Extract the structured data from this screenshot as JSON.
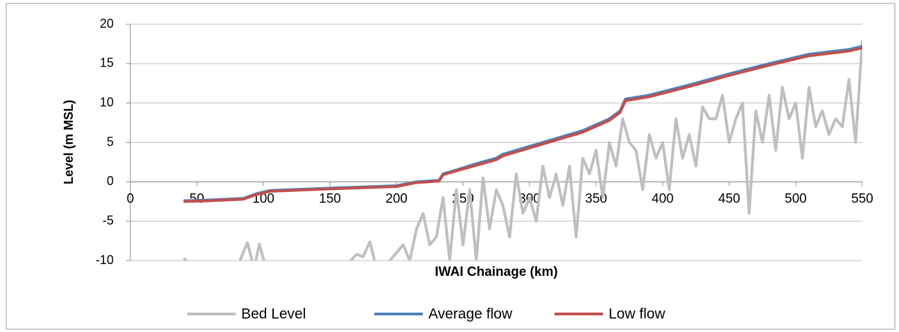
{
  "chart_data": {
    "type": "line",
    "x_label": "IWAI Chainage (km)",
    "y_label": "Level (m MSL)",
    "xlim": [
      0,
      550
    ],
    "xticks": [
      0,
      50,
      100,
      150,
      200,
      250,
      300,
      350,
      400,
      450,
      500,
      550
    ],
    "ylim": [
      -10,
      20
    ],
    "yticks": [
      -10,
      -5,
      0,
      5,
      10,
      15,
      20
    ],
    "grid": true,
    "legend": "bottom",
    "series": [
      {
        "name": "Bed Level",
        "color": "#bfbfbf",
        "x": [
          40,
          50,
          60,
          70,
          80,
          88,
          93,
          97,
          102,
          110,
          120,
          130,
          140,
          150,
          160,
          170,
          175,
          180,
          185,
          195,
          200,
          205,
          210,
          215,
          220,
          225,
          230,
          235,
          240,
          245,
          250,
          255,
          260,
          265,
          270,
          275,
          280,
          285,
          290,
          295,
          300,
          305,
          310,
          315,
          320,
          325,
          330,
          335,
          340,
          345,
          350,
          355,
          360,
          365,
          370,
          375,
          380,
          385,
          390,
          395,
          400,
          405,
          410,
          415,
          420,
          425,
          430,
          435,
          440,
          445,
          450,
          455,
          460,
          465,
          470,
          475,
          480,
          485,
          490,
          495,
          500,
          505,
          510,
          515,
          520,
          525,
          530,
          535,
          540,
          545,
          550
        ],
        "values": [
          -9.7,
          -11,
          -12,
          -12,
          -11,
          -7.7,
          -11,
          -7.9,
          -11,
          -12,
          -12,
          -12,
          -12,
          -12,
          -11,
          -9.2,
          -9.5,
          -7.6,
          -11,
          -10,
          -9,
          -8,
          -10,
          -6,
          -4,
          -8,
          -7,
          -2,
          -10,
          -1,
          -8,
          -1,
          -10,
          0.5,
          -6,
          -1,
          -3,
          -7,
          1,
          -4,
          -2,
          -5,
          2,
          -2,
          1,
          -3,
          2,
          -7,
          3,
          1,
          4,
          -2,
          5,
          2,
          8,
          5,
          4,
          -1,
          6,
          3,
          5,
          -1,
          8,
          3,
          6,
          2,
          9.5,
          8,
          8,
          11,
          5,
          8,
          10,
          -4,
          9,
          5,
          11,
          4,
          12,
          8,
          10,
          3,
          12,
          7,
          9,
          6,
          8,
          7,
          13,
          5,
          18
        ]
      },
      {
        "name": "Average flow",
        "color": "#4f81bd",
        "x": [
          40,
          60,
          85,
          95,
          105,
          150,
          200,
          215,
          232,
          235,
          245,
          260,
          275,
          280,
          300,
          320,
          340,
          360,
          368,
          372,
          390,
          420,
          450,
          480,
          510,
          540,
          550
        ],
        "values": [
          -2.4,
          -2.3,
          -2.1,
          -1.5,
          -1.1,
          -0.8,
          -0.5,
          0,
          0.2,
          1.0,
          1.5,
          2.3,
          3.0,
          3.5,
          4.5,
          5.5,
          6.5,
          8.0,
          9.0,
          10.5,
          11.0,
          12.3,
          13.7,
          15.0,
          16.2,
          16.8,
          17.2
        ]
      },
      {
        "name": "Low flow",
        "color": "#c0504d",
        "x": [
          40,
          60,
          85,
          95,
          105,
          150,
          200,
          215,
          232,
          235,
          245,
          260,
          275,
          280,
          300,
          320,
          340,
          360,
          368,
          372,
          390,
          420,
          450,
          480,
          510,
          540,
          550
        ],
        "values": [
          -2.5,
          -2.4,
          -2.2,
          -1.6,
          -1.2,
          -0.9,
          -0.6,
          -0.1,
          0.1,
          0.9,
          1.4,
          2.1,
          2.8,
          3.3,
          4.3,
          5.3,
          6.3,
          7.8,
          8.8,
          10.3,
          10.8,
          12.1,
          13.5,
          14.8,
          16.0,
          16.6,
          17.0
        ]
      }
    ]
  }
}
